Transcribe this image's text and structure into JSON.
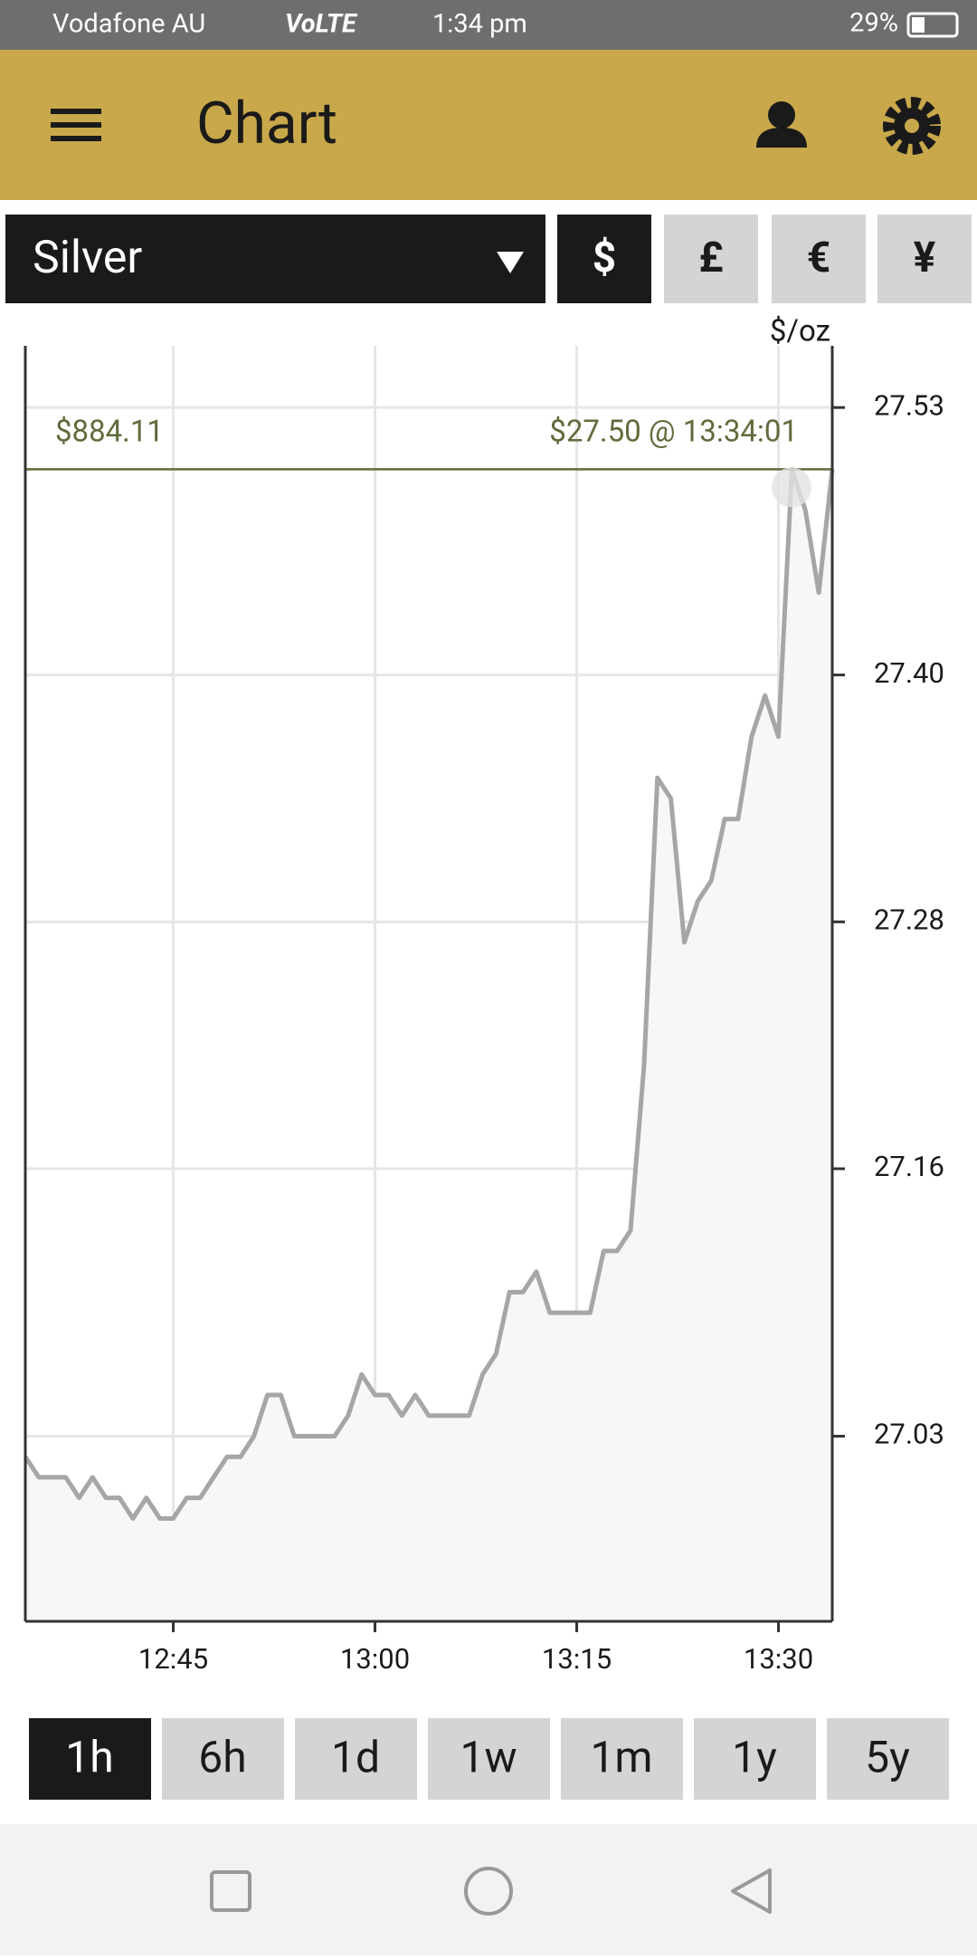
{
  "status_bar": {
    "carrier": "Vodafone AU",
    "network": "VoLTE",
    "time": "1:34 pm",
    "battery": "29%"
  },
  "app_bar": {
    "title": "Chart"
  },
  "metal_select": "Silver",
  "currencies": [
    "$",
    "£",
    "€",
    "¥"
  ],
  "chart_data": {
    "type": "line",
    "unit_label": "$/oz",
    "annotations": [
      "$884.11",
      "$27.50 @ 13:34:01"
    ],
    "x": [
      754,
      755,
      756,
      757,
      758,
      759,
      760,
      761,
      762,
      763,
      764,
      765,
      766,
      767,
      768,
      769,
      770,
      771,
      772,
      773,
      774,
      775,
      776,
      777,
      778,
      779,
      780,
      781,
      782,
      783,
      784,
      785,
      786,
      787,
      788,
      789,
      790,
      791,
      792,
      793,
      794,
      795,
      796,
      797,
      798,
      799,
      800,
      801,
      802,
      803,
      804,
      805,
      806,
      807,
      808,
      809,
      810,
      811,
      812,
      813,
      814
    ],
    "series": [
      {
        "color": "#a6a6a6",
        "values": [
          27.02,
          27.01,
          27.01,
          27.01,
          27.0,
          27.01,
          27.0,
          27.0,
          26.99,
          27.0,
          26.99,
          26.99,
          27.0,
          27.0,
          27.01,
          27.02,
          27.02,
          27.03,
          27.05,
          27.05,
          27.03,
          27.03,
          27.03,
          27.03,
          27.04,
          27.06,
          27.05,
          27.05,
          27.04,
          27.05,
          27.04,
          27.04,
          27.04,
          27.04,
          27.06,
          27.07,
          27.1,
          27.1,
          27.11,
          27.09,
          27.09,
          27.09,
          27.09,
          27.12,
          27.12,
          27.13,
          27.21,
          27.35,
          27.34,
          27.27,
          27.29,
          27.3,
          27.33,
          27.33,
          27.37,
          27.39,
          27.37,
          27.5,
          27.48,
          27.44,
          27.5
        ]
      }
    ],
    "xlim": [
      754,
      814
    ],
    "xticks": [
      {
        "value": 765,
        "label": "12:45"
      },
      {
        "value": 780,
        "label": "13:00"
      },
      {
        "value": 795,
        "label": "13:15"
      },
      {
        "value": 810,
        "label": "13:30"
      }
    ],
    "ylim": [
      26.94,
      27.56
    ],
    "yticks": [
      27.03,
      27.16,
      27.28,
      {
        "value": 27.4,
        "label": "27.40"
      },
      27.53
    ],
    "grid": true
  },
  "ranges": [
    "1h",
    "6h",
    "1d",
    "1w",
    "1m",
    "1y",
    "5y"
  ]
}
